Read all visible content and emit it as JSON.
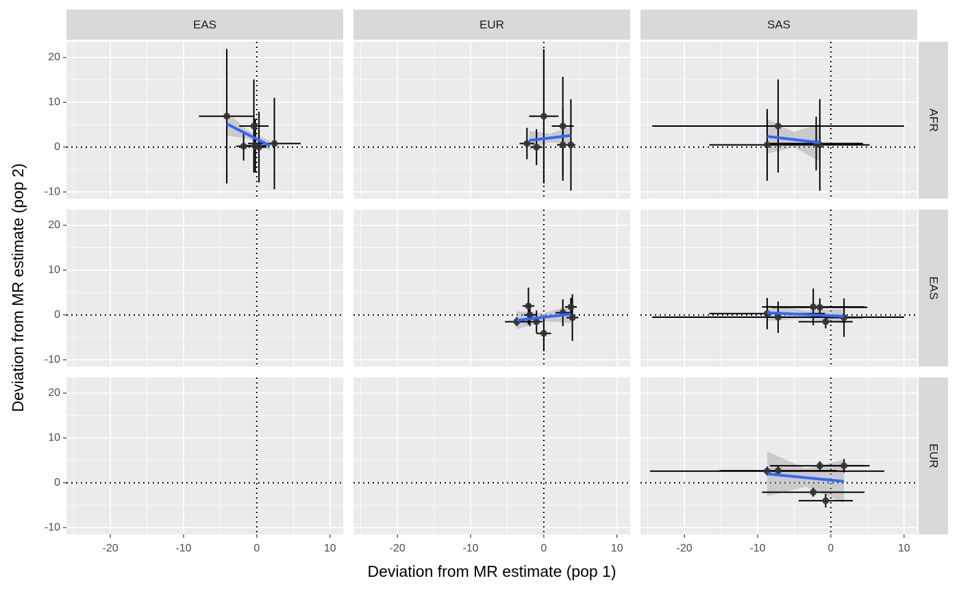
{
  "chart_data": {
    "type": "scatter",
    "x_label": "Deviation from MR estimate (pop 1)",
    "y_label": "Deviation from MR estimate (pop 2)",
    "columns": [
      "EAS",
      "EUR",
      "SAS"
    ],
    "rows": [
      "AFR",
      "EAS",
      "EUR"
    ],
    "xlim": [
      -26,
      11.8
    ],
    "ylim": [
      -11.5,
      23.5
    ],
    "xticks": [
      -20,
      -10,
      0,
      10
    ],
    "yticks": [
      -10,
      0,
      10,
      20
    ],
    "minor_xticks": [
      -25,
      -15,
      -5,
      5
    ],
    "minor_yticks": [
      -5,
      5,
      15
    ],
    "reference_lines": {
      "x": 0,
      "y": 0
    },
    "grid": true,
    "point_color": "#333333",
    "fit_color": "#3366ff",
    "band_color": "#999999",
    "panels": [
      [
        {
          "x": [
            -4.1,
            -0.4,
            -1.8,
            2.4,
            0.3,
            -0.2
          ],
          "y": [
            6.9,
            4.7,
            0.2,
            0.8,
            0,
            0.3
          ],
          "x_error": [
            3.8,
            2,
            1,
            3.6,
            1,
            1.5
          ],
          "y_error": [
            15,
            10.4,
            3.2,
            10.2,
            7.9,
            6
          ],
          "fit": {
            "x": [
              -4.1,
              -1.2,
              1.8
            ],
            "y": [
              5.2,
              2.8,
              0.3
            ],
            "lower": [
              2.6,
              1.9,
              -0.8
            ],
            "upper": [
              7.8,
              3.7,
              1.4
            ]
          }
        },
        {
          "x": [
            0,
            2.6,
            -2.3,
            -1,
            2.6,
            3.7
          ],
          "y": [
            6.9,
            4.7,
            0.8,
            0,
            0.5,
            0.5
          ],
          "x_error": [
            2,
            1.5,
            1,
            0.8,
            0.8,
            0.6
          ],
          "y_error": [
            15,
            11,
            3.5,
            4,
            8,
            10.2
          ],
          "fit": {
            "x": [
              -2,
              0.85,
              3.7
            ],
            "y": [
              1.5,
              2.05,
              2.6
            ],
            "lower": [
              -0.6,
              1.1,
              0.6
            ],
            "upper": [
              3.6,
              3.0,
              4.6
            ]
          }
        },
        {
          "x": [
            -7.2,
            -8.7,
            -1.5,
            -2
          ],
          "y": [
            4.7,
            0.5,
            0.5,
            0.8
          ],
          "x_error": [
            17.2,
            7.9,
            6.8,
            6.4
          ],
          "y_error": [
            10.4,
            8,
            10.2,
            6
          ],
          "fit": {
            "x": [
              -8.7,
              -5.1,
              -1.5
            ],
            "y": [
              2.4,
              1.7,
              1.0
            ],
            "lower": [
              -1.5,
              0,
              -3.2
            ],
            "upper": [
              6.3,
              3.4,
              5.2
            ]
          }
        }
      ],
      [
        {
          "x": [],
          "y": [],
          "x_error": [],
          "y_error": []
        },
        {
          "x": [
            -3.7,
            -2.1,
            -1.9,
            -1,
            0,
            2.6,
            3.7,
            3.9
          ],
          "y": [
            -1.5,
            2,
            0,
            -1.5,
            -4.1,
            0.5,
            1.8,
            -0.6
          ],
          "x_error": [
            1.6,
            0.8,
            0.8,
            0.8,
            1,
            1,
            0.8,
            0.8
          ],
          "y_error": [
            1,
            4.1,
            2.5,
            2.5,
            4,
            3,
            2,
            5.2
          ],
          "fit": {
            "x": [
              -3.7,
              0,
              3.7
            ],
            "y": [
              -1.2,
              -0.5,
              0.2
            ],
            "lower": [
              -3.2,
              -1.4,
              -1.8
            ],
            "upper": [
              0.8,
              0.4,
              2.2
            ]
          }
        },
        {
          "x": [
            -8.7,
            -7.2,
            -2.4,
            -1.5,
            -0.7,
            1.8
          ],
          "y": [
            0.3,
            -0.5,
            1.8,
            1.7,
            -1.5,
            -0.6
          ],
          "x_error": [
            7.9,
            17.2,
            7,
            6.5,
            3.7,
            2.5
          ],
          "y_error": [
            3.5,
            3.5,
            4.1,
            2,
            1.5,
            4.3
          ],
          "fit": {
            "x": [
              -8.7,
              -3.45,
              1.8
            ],
            "y": [
              0.5,
              0.1,
              -0.3
            ],
            "lower": [
              -1.3,
              -0.8,
              -1.9
            ],
            "upper": [
              2.3,
              1.0,
              1.3
            ]
          }
        }
      ],
      [
        {
          "x": [],
          "y": [],
          "x_error": [],
          "y_error": []
        },
        {
          "x": [],
          "y": [],
          "x_error": [],
          "y_error": []
        },
        {
          "x": [
            -8.7,
            -7.2,
            -1.5,
            1.8,
            -2.4,
            -0.7
          ],
          "y": [
            2.6,
            2.7,
            3.8,
            3.8,
            -2.1,
            -4
          ],
          "x_error": [
            16,
            8,
            6.8,
            2.8,
            7,
            3.7
          ],
          "y_error": [
            1,
            1,
            1,
            1.5,
            1,
            1.5
          ],
          "fit": {
            "x": [
              -8.7,
              -3.45,
              1.8
            ],
            "y": [
              2,
              1.15,
              0.3
            ],
            "lower": [
              -3,
              -0.9,
              -4.5
            ],
            "upper": [
              7,
              3.2,
              5.1
            ]
          }
        }
      ]
    ]
  }
}
